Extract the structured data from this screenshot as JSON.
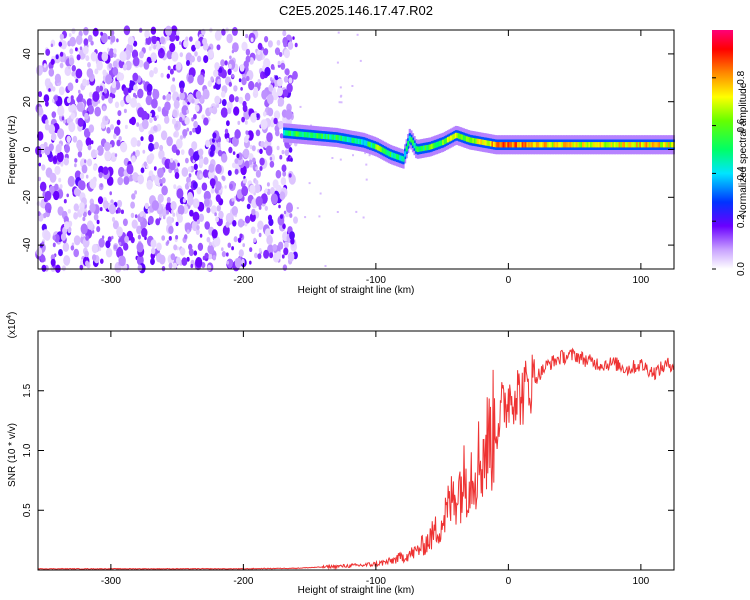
{
  "title": "C2E5.2025.146.17.47.R02",
  "chart_data": [
    {
      "type": "heatmap",
      "xlabel": "Height of straight line (km)",
      "ylabel": "Frequency (Hz)",
      "xlim": [
        -355,
        125
      ],
      "ylim": [
        -50,
        50
      ],
      "xticks": [
        -300,
        -200,
        -100,
        0,
        100
      ],
      "yticks": [
        -40,
        -20,
        0,
        20,
        40
      ],
      "colorbar": {
        "label": "Normalized spectral amplitude",
        "range": [
          0,
          1
        ],
        "ticks": [
          0.0,
          0.2,
          0.4,
          0.6,
          0.8
        ]
      },
      "noise_region_x": [
        -355,
        -160
      ],
      "ridge": {
        "x": [
          -170,
          -150,
          -130,
          -120,
          -110,
          -100,
          -90,
          -80,
          -75,
          -70,
          -60,
          -50,
          -40,
          -30,
          -20,
          -10,
          0,
          20,
          50,
          80,
          100,
          125
        ],
        "frequency": [
          7,
          6,
          5,
          4,
          3,
          1,
          -2,
          -4,
          5,
          0,
          1,
          3,
          6,
          4,
          3,
          2,
          2,
          2,
          2,
          2,
          2,
          2
        ],
        "amplitude": [
          0.5,
          0.55,
          0.5,
          0.45,
          0.4,
          0.6,
          0.5,
          0.4,
          0.45,
          0.5,
          0.55,
          0.6,
          0.65,
          0.6,
          0.7,
          0.8,
          0.85,
          0.75,
          0.7,
          0.7,
          0.75,
          0.7
        ]
      }
    },
    {
      "type": "line",
      "xlabel": "Height of straight line (km)",
      "ylabel": "SNR (10 * v/v)",
      "scale_note": "(x10",
      "scale_exp": "4",
      "scale_close": ")",
      "xlim": [
        -355,
        125
      ],
      "ylim": [
        0,
        2.0
      ],
      "xticks": [
        -300,
        -200,
        -100,
        0,
        100
      ],
      "yticks": [
        0.5,
        1.0,
        1.5
      ],
      "ytick_labels": [
        "0.5",
        "1.0",
        "1.5"
      ],
      "series": [
        {
          "color": "#ee3333",
          "x": [
            -355,
            -300,
            -250,
            -200,
            -160,
            -130,
            -110,
            -100,
            -90,
            -80,
            -70,
            -60,
            -50,
            -40,
            -30,
            -20,
            -10,
            0,
            5,
            10,
            15,
            20,
            30,
            40,
            50,
            60,
            70,
            80,
            90,
            100,
            110,
            120,
            125
          ],
          "y": [
            0.01,
            0.01,
            0.01,
            0.01,
            0.015,
            0.03,
            0.04,
            0.05,
            0.07,
            0.11,
            0.15,
            0.25,
            0.4,
            0.65,
            0.8,
            0.95,
            1.2,
            1.45,
            1.5,
            1.45,
            1.55,
            1.6,
            1.72,
            1.78,
            1.8,
            1.75,
            1.72,
            1.73,
            1.68,
            1.72,
            1.65,
            1.72,
            1.72
          ]
        }
      ]
    }
  ]
}
